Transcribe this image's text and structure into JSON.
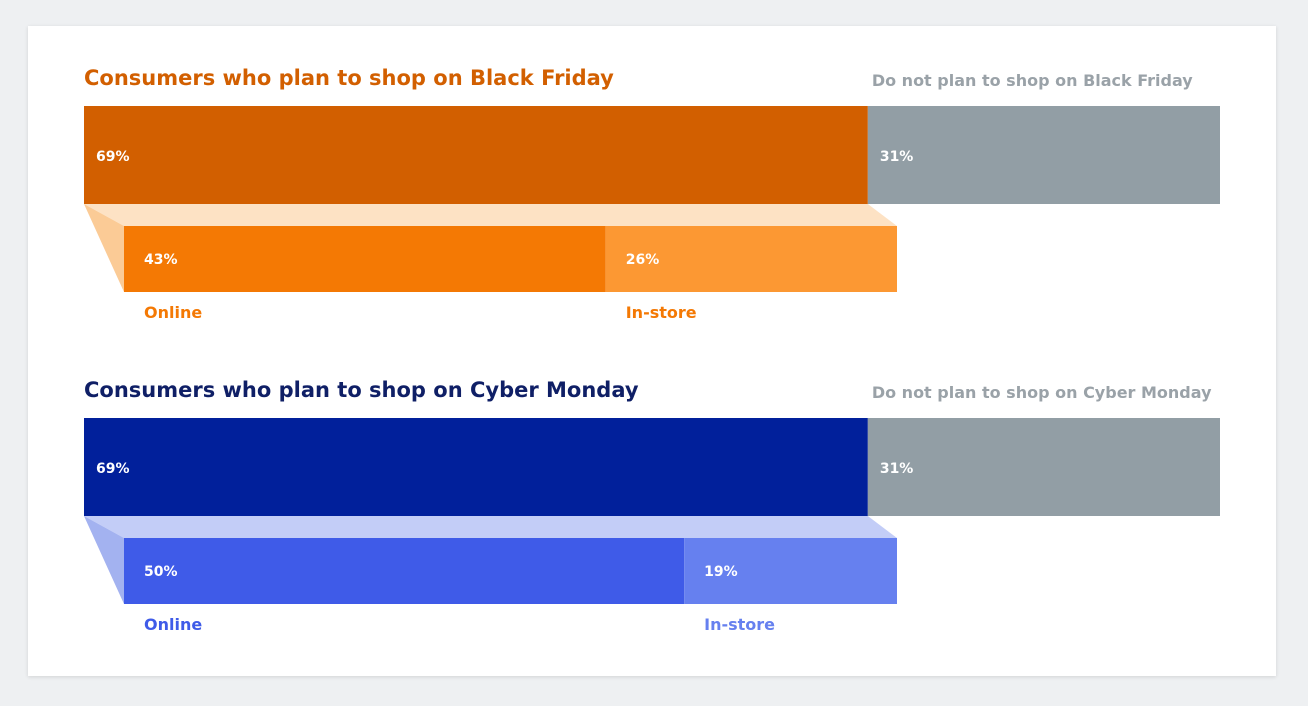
{
  "chart_data": [
    {
      "type": "bar",
      "title": "Consumers who plan to shop on Black Friday",
      "segments": [
        {
          "name": "",
          "value": 69,
          "label": "69%"
        },
        {
          "name": "Do not plan to shop on Black Friday",
          "value": 31,
          "label": "31%"
        }
      ],
      "breakdown": [
        {
          "name": "Online",
          "value": 43,
          "label": "43%"
        },
        {
          "name": "In-store",
          "value": 26,
          "label": "26%"
        }
      ],
      "colors": {
        "title": "#d25f00",
        "plan": "#d25f00",
        "not_plan": "#929ea5",
        "online": "#f47904",
        "instore": "#fc9833",
        "connector": "#fde2c4",
        "connector_side": "#fbcb96",
        "online_label": "#f47904",
        "instore_label": "#f47904",
        "not_plan_label": "#9aa2a8"
      }
    },
    {
      "type": "bar",
      "title": "Consumers who plan to shop on Cyber Monday",
      "segments": [
        {
          "name": "",
          "value": 69,
          "label": "69%"
        },
        {
          "name": "Do not plan to shop on Cyber Monday",
          "value": 31,
          "label": "31%"
        }
      ],
      "breakdown": [
        {
          "name": "Online",
          "value": 50,
          "label": "50%"
        },
        {
          "name": "In-store",
          "value": 19,
          "label": "19%"
        }
      ],
      "colors": {
        "title": "#0f1f66",
        "plan": "#01209b",
        "not_plan": "#929ea5",
        "online": "#3f5be8",
        "instore": "#6680ef",
        "connector": "#c3cdf7",
        "connector_side": "#a3b2f0",
        "online_label": "#3f5be8",
        "instore_label": "#6680ef",
        "not_plan_label": "#9aa2a8"
      }
    }
  ]
}
